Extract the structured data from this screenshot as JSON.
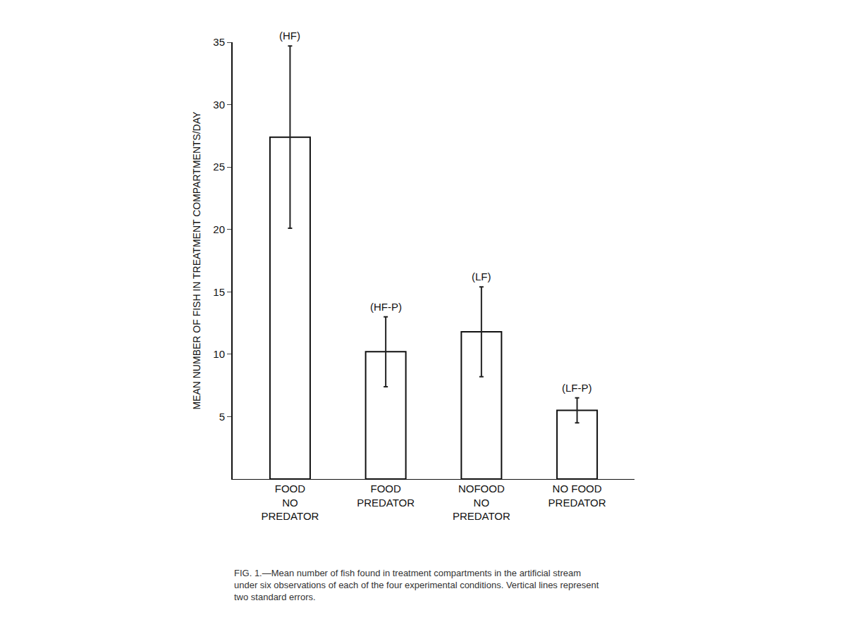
{
  "chart_data": {
    "type": "bar",
    "categories": [
      "FOOD\nNO\nPREDATOR",
      "FOOD\nPREDATOR",
      "NOFOOD\nNO\nPREDATOR",
      "NO FOOD\nPREDATOR"
    ],
    "values": [
      27.4,
      10.2,
      11.8,
      5.5
    ],
    "errors": [
      7.3,
      2.8,
      3.6,
      1.0
    ],
    "annotations": [
      "(HF)",
      "(HF-P)",
      "(LF)",
      "(LF-P)"
    ],
    "color": "#ffffff",
    "y_label": "MEAN NUMBER OF FISH IN TREATMENT COMPARTMENTS/DAY",
    "ylim": [
      0,
      35
    ],
    "yticks": [
      5,
      10,
      15,
      20,
      25,
      30,
      35
    ],
    "grid": false,
    "caption": [
      "FIG. 1.—Mean number of fish found in treatment compartments in the artificial stream",
      "under six observations of each of the four experimental conditions. Vertical lines represent",
      "two standard errors."
    ]
  }
}
